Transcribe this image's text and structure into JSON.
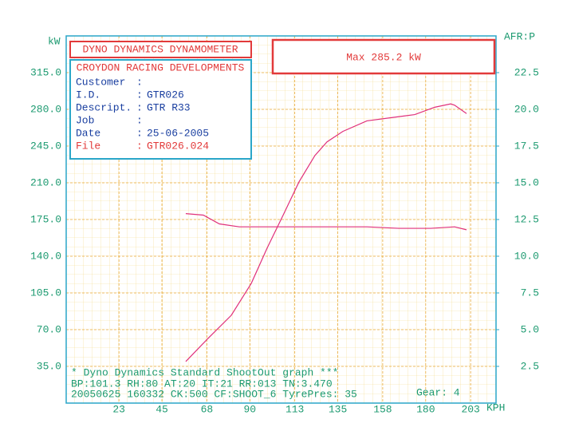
{
  "chart_data": {
    "type": "line",
    "y_label": "kW",
    "y2_label": "AFR:P",
    "x_label": "KPH",
    "header": "DYNO DYNAMICS DYNAMOMETER",
    "company": "CROYDON RACING DEVELOPMENTS",
    "max_label": "Max 285.2 kW",
    "info": [
      {
        "label": "Customer"
      },
      {
        "label": "I.D.",
        "value": "GTR026"
      },
      {
        "label": "Descript.",
        "value": "GTR R33"
      },
      {
        "label": "Job"
      },
      {
        "label": "Date",
        "value": "25-06-2005"
      },
      {
        "label": "File",
        "value": "GTR026.024"
      }
    ],
    "footer": [
      "* Dyno Dynamics Standard ShootOut graph ***",
      "BP:101.3 RH:80 AT:20 IT:21 RR:013 TN:3.470",
      "20050625 160332 CK:500 CF:SHOOT_6 TyrePres: 35"
    ],
    "gear": "Gear: 4",
    "xlim": [
      -4,
      216
    ],
    "xticks": [
      23,
      45,
      68,
      90,
      113,
      135,
      158,
      180,
      203
    ],
    "ylim": [
      0,
      350
    ],
    "yticks": [
      {
        "value": 35,
        "label": "35.0"
      },
      {
        "value": 70,
        "label": "70.0"
      },
      {
        "value": 105,
        "label": "105.0"
      },
      {
        "value": 140,
        "label": "140.0"
      },
      {
        "value": 175,
        "label": "175.0"
      },
      {
        "value": 210,
        "label": "210.0"
      },
      {
        "value": 245,
        "label": "245.0"
      },
      {
        "value": 280,
        "label": "280.0"
      },
      {
        "value": 315,
        "label": "315.0"
      }
    ],
    "y2lim": [
      0,
      25
    ],
    "y2ticks": [
      2.5,
      {
        "value": 5,
        "label": "5.0"
      },
      7.5,
      {
        "value": 10,
        "label": "10.0"
      },
      12.5,
      {
        "value": 15,
        "label": "15.0"
      },
      17.5,
      {
        "value": 20,
        "label": "20.0"
      },
      22.5
    ],
    "grid": true,
    "series": [
      {
        "color": "#e0307a",
        "x": [
          57.2,
          68.2,
          80.5,
          90.7,
          98.9,
          107,
          115.2,
          123.3,
          129.5,
          137.6,
          149.9,
          162.1,
          174.4,
          184.6,
          192.8,
          194.8,
          200.9
        ],
        "values": [
          39.6,
          60.9,
          83.7,
          114,
          148,
          179,
          211,
          236,
          249,
          259,
          269,
          272,
          275,
          282,
          285.2,
          284,
          276
        ]
      },
      {
        "color": "#e0307a",
        "axis": "y2",
        "x": [
          57.2,
          66.2,
          74.4,
          84.6,
          101,
          117.3,
          133.6,
          149.9,
          166.2,
          182.6,
          194.8,
          200.9
        ],
        "values": [
          12.9,
          12.8,
          12.2,
          12.0,
          12.0,
          12.0,
          12.0,
          12.0,
          11.9,
          11.9,
          12.0,
          11.8
        ]
      }
    ]
  }
}
